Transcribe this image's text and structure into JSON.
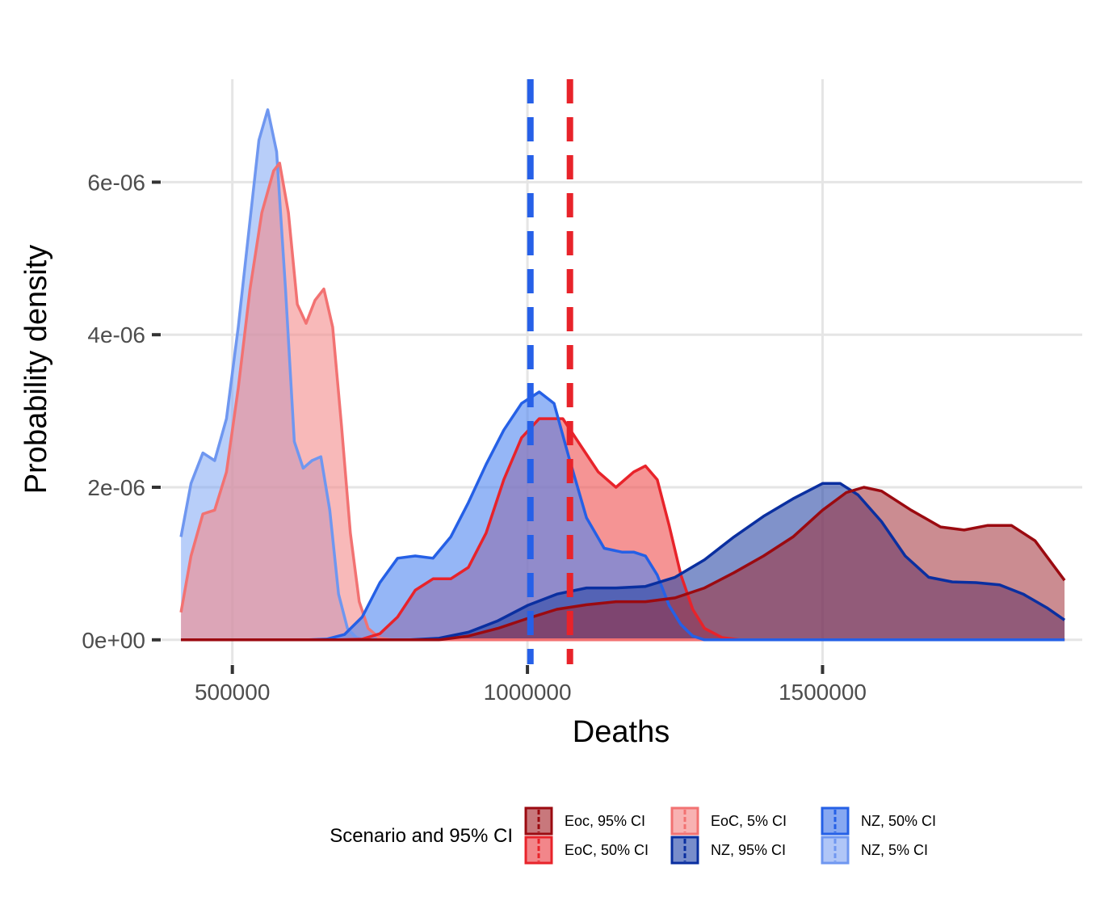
{
  "chart_data": {
    "type": "area",
    "xlabel": "Deaths",
    "ylabel": "Probability density",
    "xlim": [
      380000,
      1940000
    ],
    "ylim": [
      -3.2e-07,
      7.35e-06
    ],
    "x_ticks": [
      500000,
      1000000,
      1500000
    ],
    "x_tick_labels": [
      "500000",
      "1000000",
      "1500000"
    ],
    "y_ticks": [
      0,
      2e-06,
      4e-06,
      6e-06
    ],
    "y_tick_labels": [
      "0e+00",
      "2e-06",
      "4e-06",
      "6e-06"
    ],
    "grid": true,
    "legend_position": "bottom",
    "legend_title": "Scenario and 95% CI",
    "series": [
      {
        "name": "NZ, 5% CI",
        "fill": "#7ea6f4",
        "line": "#6f97f0",
        "fill_opacity": 0.55,
        "points": [
          [
            413000,
            1.35e-06
          ],
          [
            430000,
            2.05e-06
          ],
          [
            450000,
            2.45e-06
          ],
          [
            470000,
            2.35e-06
          ],
          [
            490000,
            2.9e-06
          ],
          [
            510000,
            4.1e-06
          ],
          [
            530000,
            5.5e-06
          ],
          [
            545000,
            6.55e-06
          ],
          [
            560000,
            6.95e-06
          ],
          [
            575000,
            6.4e-06
          ],
          [
            590000,
            4.6e-06
          ],
          [
            605000,
            2.6e-06
          ],
          [
            620000,
            2.25e-06
          ],
          [
            635000,
            2.35e-06
          ],
          [
            650000,
            2.4e-06
          ],
          [
            665000,
            1.7e-06
          ],
          [
            680000,
            6e-07
          ],
          [
            695000,
            1.5e-07
          ],
          [
            710000,
            3e-08
          ],
          [
            725000,
            0
          ],
          [
            1910000,
            0
          ]
        ]
      },
      {
        "name": "EoC, 5% CI",
        "fill": "#f48a8a",
        "line": "#f27272",
        "fill_opacity": 0.6,
        "points": [
          [
            413000,
            3.6e-07
          ],
          [
            430000,
            1.1e-06
          ],
          [
            450000,
            1.65e-06
          ],
          [
            470000,
            1.7e-06
          ],
          [
            490000,
            2.2e-06
          ],
          [
            510000,
            3.3e-06
          ],
          [
            530000,
            4.6e-06
          ],
          [
            550000,
            5.6e-06
          ],
          [
            570000,
            6.15e-06
          ],
          [
            580000,
            6.25e-06
          ],
          [
            595000,
            5.6e-06
          ],
          [
            610000,
            4.4e-06
          ],
          [
            625000,
            4.15e-06
          ],
          [
            640000,
            4.45e-06
          ],
          [
            655000,
            4.6e-06
          ],
          [
            670000,
            4.1e-06
          ],
          [
            685000,
            2.8e-06
          ],
          [
            700000,
            1.4e-06
          ],
          [
            715000,
            5e-07
          ],
          [
            730000,
            1.5e-07
          ],
          [
            750000,
            2e-08
          ],
          [
            770000,
            0
          ],
          [
            1910000,
            0
          ]
        ]
      },
      {
        "name": "EoC, 50% CI",
        "fill": "#ef5a5a",
        "line": "#e8232a",
        "fill_opacity": 0.65,
        "points": [
          [
            413000,
            0
          ],
          [
            680000,
            0
          ],
          [
            720000,
            1e-08
          ],
          [
            750000,
            8e-08
          ],
          [
            780000,
            3e-07
          ],
          [
            810000,
            6.5e-07
          ],
          [
            840000,
            8e-07
          ],
          [
            870000,
            8e-07
          ],
          [
            900000,
            9.5e-07
          ],
          [
            930000,
            1.4e-06
          ],
          [
            960000,
            2.1e-06
          ],
          [
            990000,
            2.65e-06
          ],
          [
            1020000,
            2.9e-06
          ],
          [
            1060000,
            2.9e-06
          ],
          [
            1090000,
            2.55e-06
          ],
          [
            1120000,
            2.2e-06
          ],
          [
            1150000,
            2e-06
          ],
          [
            1180000,
            2.2e-06
          ],
          [
            1200000,
            2.28e-06
          ],
          [
            1220000,
            2.1e-06
          ],
          [
            1240000,
            1.5e-06
          ],
          [
            1260000,
            8.5e-07
          ],
          [
            1280000,
            4e-07
          ],
          [
            1300000,
            1.5e-07
          ],
          [
            1330000,
            3e-08
          ],
          [
            1360000,
            0
          ],
          [
            1910000,
            0
          ]
        ]
      },
      {
        "name": "NZ, 50% CI",
        "fill": "#4f86f0",
        "line": "#2560e6",
        "fill_opacity": 0.6,
        "points": [
          [
            413000,
            0
          ],
          [
            630000,
            0
          ],
          [
            660000,
            1e-08
          ],
          [
            690000,
            7e-08
          ],
          [
            720000,
            3e-07
          ],
          [
            750000,
            7.5e-07
          ],
          [
            780000,
            1.07e-06
          ],
          [
            810000,
            1.1e-06
          ],
          [
            840000,
            1.07e-06
          ],
          [
            870000,
            1.35e-06
          ],
          [
            900000,
            1.8e-06
          ],
          [
            930000,
            2.3e-06
          ],
          [
            960000,
            2.75e-06
          ],
          [
            990000,
            3.1e-06
          ],
          [
            1020000,
            3.25e-06
          ],
          [
            1045000,
            3.1e-06
          ],
          [
            1070000,
            2.4e-06
          ],
          [
            1100000,
            1.6e-06
          ],
          [
            1130000,
            1.2e-06
          ],
          [
            1160000,
            1.15e-06
          ],
          [
            1180000,
            1.15e-06
          ],
          [
            1200000,
            1.1e-06
          ],
          [
            1220000,
            8.5e-07
          ],
          [
            1240000,
            4.5e-07
          ],
          [
            1260000,
            2e-07
          ],
          [
            1280000,
            5e-08
          ],
          [
            1300000,
            0
          ],
          [
            1910000,
            0
          ]
        ]
      },
      {
        "name": "NZ, 95% CI",
        "fill": "#2c49a6",
        "line": "#0a2fa0",
        "fill_opacity": 0.6,
        "points": [
          [
            413000,
            0
          ],
          [
            800000,
            0
          ],
          [
            850000,
            2e-08
          ],
          [
            900000,
            1e-07
          ],
          [
            950000,
            2.5e-07
          ],
          [
            1000000,
            4.5e-07
          ],
          [
            1050000,
            6e-07
          ],
          [
            1100000,
            6.8e-07
          ],
          [
            1150000,
            6.8e-07
          ],
          [
            1200000,
            7e-07
          ],
          [
            1250000,
            8.2e-07
          ],
          [
            1300000,
            1.05e-06
          ],
          [
            1350000,
            1.35e-06
          ],
          [
            1400000,
            1.62e-06
          ],
          [
            1450000,
            1.85e-06
          ],
          [
            1500000,
            2.05e-06
          ],
          [
            1530000,
            2.05e-06
          ],
          [
            1560000,
            1.9e-06
          ],
          [
            1600000,
            1.55e-06
          ],
          [
            1640000,
            1.1e-06
          ],
          [
            1680000,
            8.2e-07
          ],
          [
            1720000,
            7.6e-07
          ],
          [
            1760000,
            7.5e-07
          ],
          [
            1800000,
            7.2e-07
          ],
          [
            1840000,
            6e-07
          ],
          [
            1880000,
            4.2e-07
          ],
          [
            1910000,
            2.6e-07
          ]
        ]
      },
      {
        "name": "Eoc, 95% CI",
        "fill": "#a02e36",
        "line": "#9b0a10",
        "fill_opacity": 0.55,
        "points": [
          [
            413000,
            0
          ],
          [
            850000,
            0
          ],
          [
            900000,
            5e-08
          ],
          [
            950000,
            1.5e-07
          ],
          [
            1000000,
            2.8e-07
          ],
          [
            1050000,
            4e-07
          ],
          [
            1100000,
            4.6e-07
          ],
          [
            1150000,
            5e-07
          ],
          [
            1200000,
            5e-07
          ],
          [
            1250000,
            5.5e-07
          ],
          [
            1300000,
            6.8e-07
          ],
          [
            1350000,
            8.8e-07
          ],
          [
            1400000,
            1.1e-06
          ],
          [
            1450000,
            1.35e-06
          ],
          [
            1500000,
            1.7e-06
          ],
          [
            1540000,
            1.93e-06
          ],
          [
            1570000,
            2e-06
          ],
          [
            1600000,
            1.95e-06
          ],
          [
            1650000,
            1.7e-06
          ],
          [
            1700000,
            1.48e-06
          ],
          [
            1740000,
            1.44e-06
          ],
          [
            1780000,
            1.5e-06
          ],
          [
            1820000,
            1.5e-06
          ],
          [
            1860000,
            1.3e-06
          ],
          [
            1910000,
            7.8e-07
          ]
        ]
      }
    ],
    "reference_lines": [
      {
        "x": 1005000,
        "color": "#2660e8",
        "style": "dashed"
      },
      {
        "x": 1072000,
        "color": "#e8232a",
        "style": "dashed"
      }
    ],
    "legend_items": [
      {
        "label": "Eoc, 95% CI",
        "color": "#9b0a10"
      },
      {
        "label": "EoC, 50% CI",
        "color": "#e8232a"
      },
      {
        "label": "EoC, 5% CI",
        "color": "#f27272"
      },
      {
        "label": "NZ, 95% CI",
        "color": "#0a2fa0"
      },
      {
        "label": "NZ, 50% CI",
        "color": "#2560e6"
      },
      {
        "label": "NZ, 5% CI",
        "color": "#6f97f0"
      }
    ]
  }
}
